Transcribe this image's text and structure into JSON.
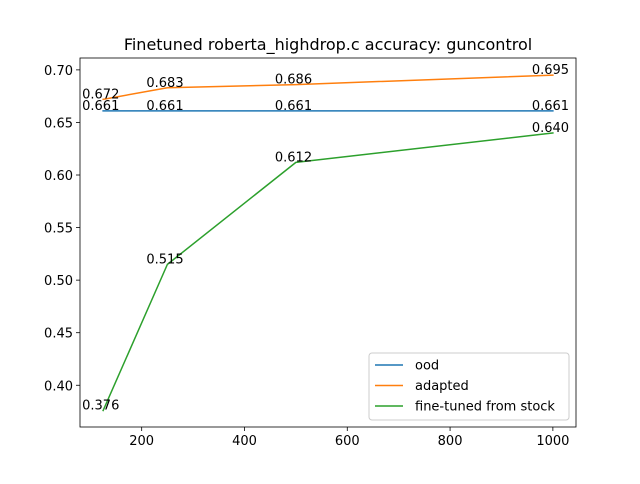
{
  "chart_data": {
    "type": "line",
    "title": "Finetuned roberta_highdrop.c accuracy: guncontrol",
    "xlabel": "",
    "ylabel": "",
    "x": [
      125,
      250,
      500,
      1000
    ],
    "xlim": [
      80,
      1045
    ],
    "ylim": [
      0.3603,
      0.7113
    ],
    "xticks": [
      200,
      400,
      600,
      800,
      1000
    ],
    "xtick_labels": [
      "200",
      "400",
      "600",
      "800",
      "1000"
    ],
    "yticks": [
      0.4,
      0.45,
      0.5,
      0.55,
      0.6,
      0.65,
      0.7
    ],
    "ytick_labels": [
      "0.40",
      "0.45",
      "0.50",
      "0.55",
      "0.60",
      "0.65",
      "0.70"
    ],
    "grid": false,
    "legend_position": "lower-right",
    "series": [
      {
        "name": "ood",
        "color": "#1f77b4",
        "values": [
          0.661,
          0.661,
          0.661,
          0.661
        ],
        "labels": [
          "0.661",
          "0.661",
          "0.661",
          "0.661"
        ]
      },
      {
        "name": "adapted",
        "color": "#ff7f0e",
        "values": [
          0.672,
          0.683,
          0.686,
          0.695
        ],
        "labels": [
          "0.672",
          "0.683",
          "0.686",
          "0.695"
        ]
      },
      {
        "name": "fine-tuned from stock",
        "color": "#2ca02c",
        "values": [
          0.376,
          0.515,
          0.612,
          0.64
        ],
        "labels": [
          "0.376",
          "0.515",
          "0.612",
          "0.640"
        ]
      }
    ]
  }
}
